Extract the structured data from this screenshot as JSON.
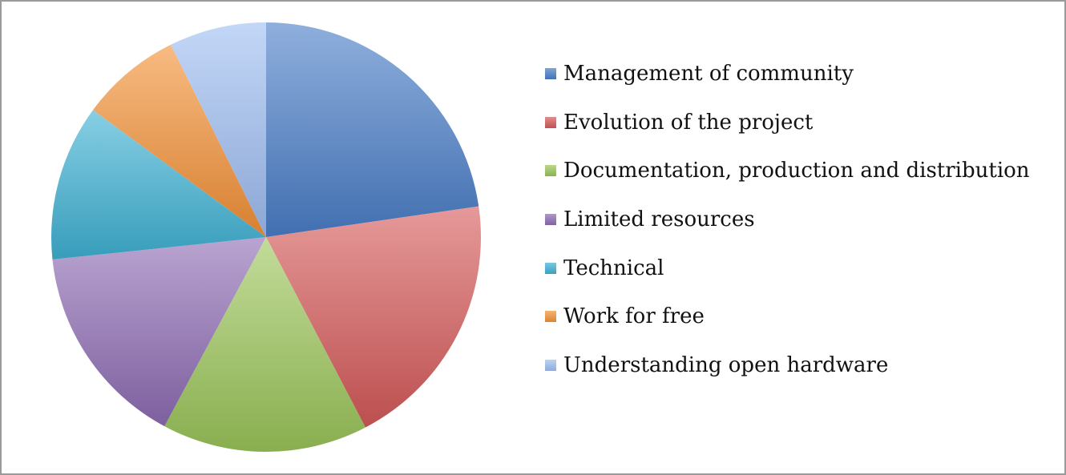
{
  "chart_data": {
    "type": "pie",
    "title": "",
    "legend_position": "right",
    "start_angle_deg": 0,
    "direction": "clockwise",
    "series": [
      {
        "categories": [
          "Management of community",
          "Evolution of the project",
          "Documentation, production and distribution",
          "Limited resources",
          "Technical",
          "Work for free",
          "Understanding open hardware"
        ],
        "values": [
          23.6,
          20.4,
          16.1,
          16.1,
          12.2,
          7.9,
          7.6
        ],
        "colors": [
          "#4a7ec8",
          "#d65a5a",
          "#9cc65a",
          "#8e6cb4",
          "#3eb2d4",
          "#f49236",
          "#9fbef2"
        ]
      }
    ]
  }
}
